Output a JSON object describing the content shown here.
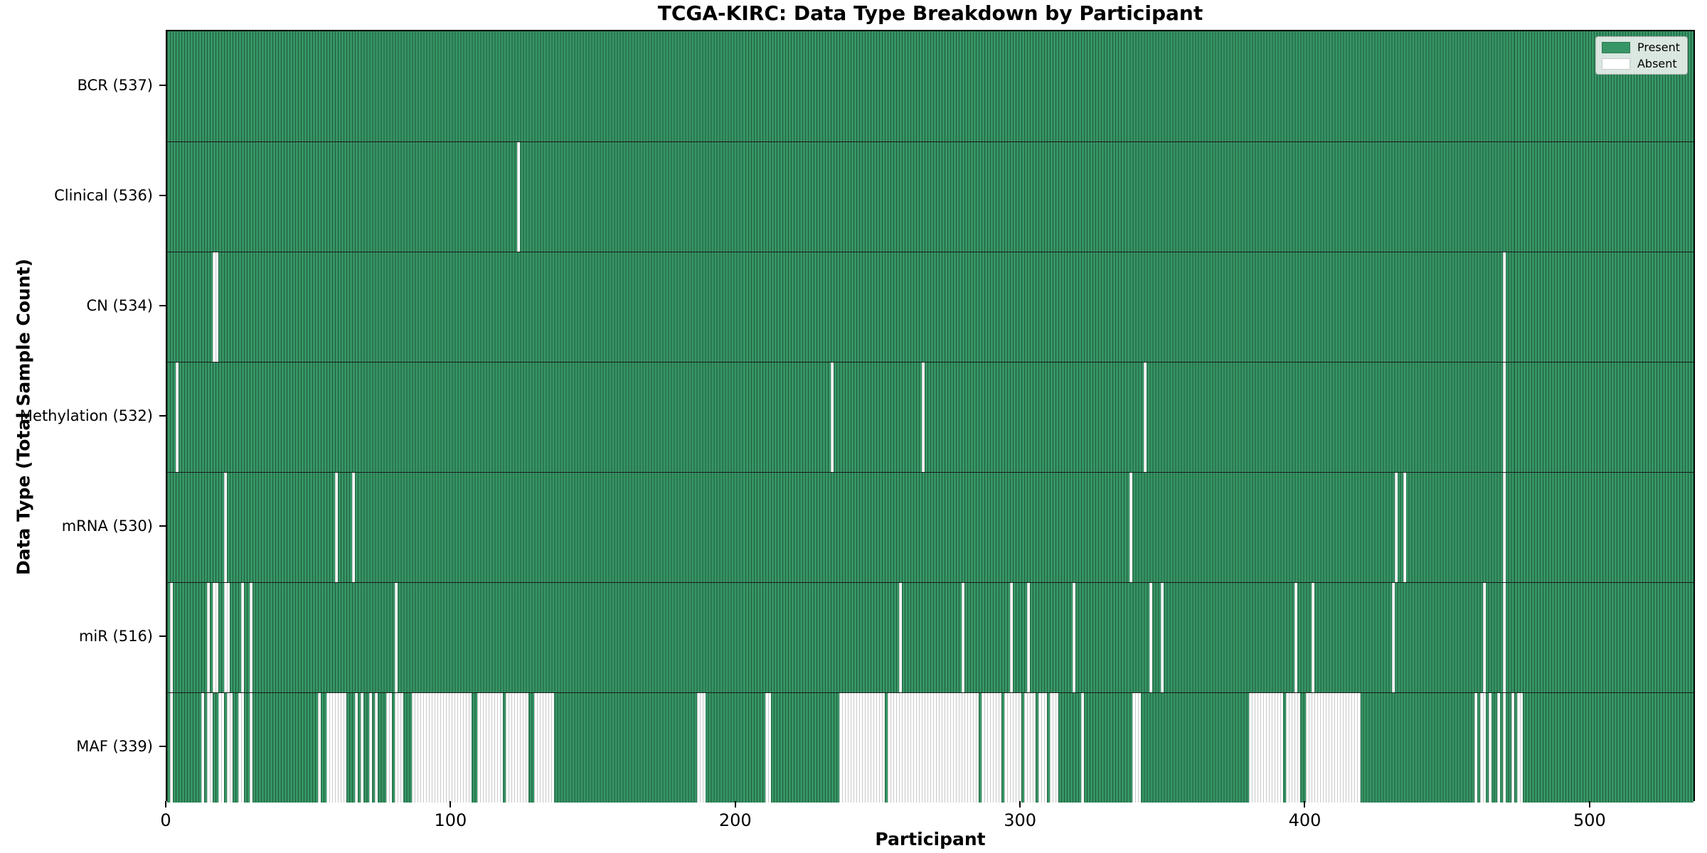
{
  "chart_data": {
    "type": "heatmap",
    "title": "TCGA-KIRC: Data Type Breakdown by Participant",
    "xlabel": "Participant",
    "ylabel": "Data Type (Total Sample Count)",
    "xlim": [
      0,
      537
    ],
    "x_ticks": [
      0,
      100,
      200,
      300,
      400,
      500
    ],
    "grid": false,
    "legend_position": "upper right",
    "colors": {
      "present": "#379566",
      "present_edge": "#1e5c3a",
      "absent": "#ffffff",
      "absent_edge": "#c9c9c9"
    },
    "legend": [
      {
        "label": "Present",
        "color": "#379566"
      },
      {
        "label": "Absent",
        "color": "#ffffff"
      }
    ],
    "rows": [
      {
        "label": "BCR (537)",
        "name": "BCR",
        "present_count": 537,
        "absent_ranges": []
      },
      {
        "label": "Clinical (536)",
        "name": "Clinical",
        "present_count": 536,
        "absent_ranges": [
          [
            123,
            123
          ]
        ]
      },
      {
        "label": "CN (534)",
        "name": "CN",
        "present_count": 534,
        "absent_ranges": [
          [
            16,
            17
          ],
          [
            469,
            469
          ]
        ]
      },
      {
        "label": "Methylation (532)",
        "name": "Methylation",
        "present_count": 532,
        "absent_ranges": [
          [
            3,
            3
          ],
          [
            233,
            233
          ],
          [
            265,
            265
          ],
          [
            343,
            343
          ],
          [
            469,
            469
          ]
        ]
      },
      {
        "label": "mRNA (530)",
        "name": "mRNA",
        "present_count": 530,
        "absent_ranges": [
          [
            20,
            20
          ],
          [
            59,
            59
          ],
          [
            65,
            65
          ],
          [
            338,
            338
          ],
          [
            431,
            431
          ],
          [
            434,
            434
          ],
          [
            469,
            469
          ]
        ]
      },
      {
        "label": "miR (516)",
        "name": "miR",
        "present_count": 516,
        "absent_ranges": [
          [
            1,
            1
          ],
          [
            14,
            14
          ],
          [
            16,
            17
          ],
          [
            20,
            21
          ],
          [
            26,
            26
          ],
          [
            29,
            29
          ],
          [
            80,
            80
          ],
          [
            257,
            257
          ],
          [
            279,
            279
          ],
          [
            296,
            296
          ],
          [
            302,
            302
          ],
          [
            318,
            318
          ],
          [
            345,
            345
          ],
          [
            349,
            349
          ],
          [
            396,
            396
          ],
          [
            402,
            402
          ],
          [
            430,
            430
          ],
          [
            462,
            462
          ],
          [
            469,
            469
          ]
        ]
      },
      {
        "label": "MAF (339)",
        "name": "MAF",
        "present_count": 339,
        "absent_ranges": [
          [
            1,
            1
          ],
          [
            12,
            12
          ],
          [
            14,
            15
          ],
          [
            18,
            19
          ],
          [
            21,
            22
          ],
          [
            25,
            26
          ],
          [
            29,
            29
          ],
          [
            53,
            53
          ],
          [
            56,
            62
          ],
          [
            66,
            66
          ],
          [
            68,
            68
          ],
          [
            71,
            71
          ],
          [
            73,
            73
          ],
          [
            77,
            78
          ],
          [
            80,
            82
          ],
          [
            86,
            106
          ],
          [
            109,
            117
          ],
          [
            119,
            126
          ],
          [
            129,
            135
          ],
          [
            186,
            188
          ],
          [
            210,
            211
          ],
          [
            236,
            251
          ],
          [
            253,
            284
          ],
          [
            286,
            292
          ],
          [
            294,
            299
          ],
          [
            301,
            304
          ],
          [
            306,
            308
          ],
          [
            310,
            312
          ],
          [
            321,
            321
          ],
          [
            339,
            341
          ],
          [
            380,
            391
          ],
          [
            393,
            397
          ],
          [
            400,
            418
          ],
          [
            459,
            459
          ],
          [
            461,
            462
          ],
          [
            464,
            464
          ],
          [
            467,
            467
          ],
          [
            469,
            469
          ],
          [
            472,
            472
          ],
          [
            474,
            475
          ]
        ]
      }
    ]
  }
}
